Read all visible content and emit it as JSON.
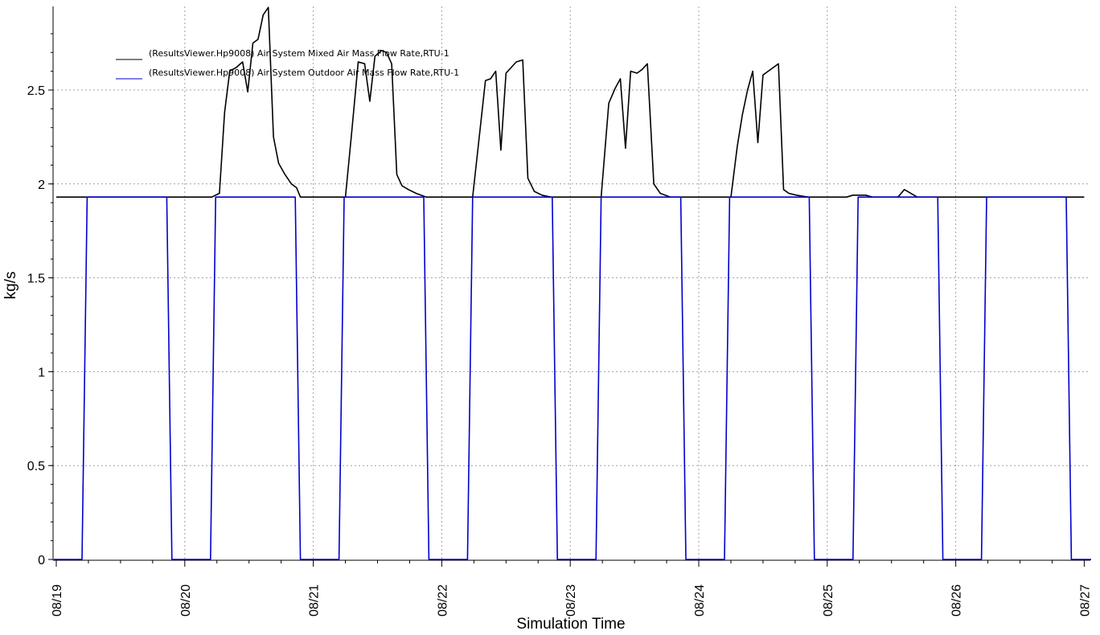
{
  "chart_data": {
    "type": "line",
    "xlabel": "Simulation Time",
    "ylabel": "kg/s",
    "xlim": [
      0,
      8
    ],
    "ylim": [
      0,
      2.92
    ],
    "x_ticks": [
      {
        "x": 0,
        "label": "08/19"
      },
      {
        "x": 1,
        "label": "08/20"
      },
      {
        "x": 2,
        "label": "08/21"
      },
      {
        "x": 3,
        "label": "08/22"
      },
      {
        "x": 4,
        "label": "08/23"
      },
      {
        "x": 5,
        "label": "08/24"
      },
      {
        "x": 6,
        "label": "08/25"
      },
      {
        "x": 7,
        "label": "08/26"
      },
      {
        "x": 8,
        "label": "08/27"
      }
    ],
    "y_ticks": [
      {
        "y": 0,
        "label": "0"
      },
      {
        "y": 0.5,
        "label": "0.5"
      },
      {
        "y": 1,
        "label": "1"
      },
      {
        "y": 1.5,
        "label": "1.5"
      },
      {
        "y": 2,
        "label": "2"
      },
      {
        "y": 2.5,
        "label": "2.5"
      }
    ],
    "grid": true,
    "legend_position": "top-left",
    "series": [
      {
        "name": "(ResultsViewer.Hp9008) Air System Mixed Air Mass Flow Rate,RTU-1",
        "color": "#000000",
        "points": [
          [
            0.0,
            1.93
          ],
          [
            1.21,
            1.93
          ],
          [
            1.27,
            1.95
          ],
          [
            1.31,
            2.38
          ],
          [
            1.35,
            2.6
          ],
          [
            1.4,
            2.62
          ],
          [
            1.45,
            2.65
          ],
          [
            1.49,
            2.49
          ],
          [
            1.53,
            2.75
          ],
          [
            1.57,
            2.77
          ],
          [
            1.61,
            2.9
          ],
          [
            1.65,
            2.94
          ],
          [
            1.69,
            2.25
          ],
          [
            1.73,
            2.11
          ],
          [
            1.78,
            2.05
          ],
          [
            1.83,
            2.0
          ],
          [
            1.87,
            1.98
          ],
          [
            1.9,
            1.93
          ],
          [
            2.25,
            1.93
          ],
          [
            2.3,
            2.28
          ],
          [
            2.35,
            2.65
          ],
          [
            2.4,
            2.64
          ],
          [
            2.44,
            2.44
          ],
          [
            2.48,
            2.68
          ],
          [
            2.53,
            2.71
          ],
          [
            2.57,
            2.7
          ],
          [
            2.61,
            2.64
          ],
          [
            2.65,
            2.05
          ],
          [
            2.69,
            1.99
          ],
          [
            2.74,
            1.97
          ],
          [
            2.8,
            1.95
          ],
          [
            2.88,
            1.93
          ],
          [
            3.24,
            1.93
          ],
          [
            3.3,
            2.3
          ],
          [
            3.34,
            2.55
          ],
          [
            3.38,
            2.56
          ],
          [
            3.42,
            2.6
          ],
          [
            3.46,
            2.18
          ],
          [
            3.5,
            2.59
          ],
          [
            3.54,
            2.62
          ],
          [
            3.58,
            2.65
          ],
          [
            3.63,
            2.66
          ],
          [
            3.67,
            2.03
          ],
          [
            3.72,
            1.96
          ],
          [
            3.78,
            1.94
          ],
          [
            3.85,
            1.93
          ],
          [
            4.24,
            1.93
          ],
          [
            4.3,
            2.43
          ],
          [
            4.35,
            2.51
          ],
          [
            4.39,
            2.56
          ],
          [
            4.43,
            2.19
          ],
          [
            4.47,
            2.6
          ],
          [
            4.52,
            2.59
          ],
          [
            4.56,
            2.61
          ],
          [
            4.6,
            2.64
          ],
          [
            4.65,
            2.0
          ],
          [
            4.7,
            1.95
          ],
          [
            4.78,
            1.93
          ],
          [
            5.25,
            1.93
          ],
          [
            5.3,
            2.2
          ],
          [
            5.34,
            2.37
          ],
          [
            5.38,
            2.5
          ],
          [
            5.42,
            2.6
          ],
          [
            5.46,
            2.22
          ],
          [
            5.5,
            2.58
          ],
          [
            5.54,
            2.6
          ],
          [
            5.58,
            2.62
          ],
          [
            5.62,
            2.64
          ],
          [
            5.66,
            1.97
          ],
          [
            5.7,
            1.95
          ],
          [
            5.76,
            1.94
          ],
          [
            5.85,
            1.93
          ],
          [
            6.15,
            1.93
          ],
          [
            6.2,
            1.94
          ],
          [
            6.3,
            1.94
          ],
          [
            6.35,
            1.93
          ],
          [
            6.55,
            1.93
          ],
          [
            6.6,
            1.97
          ],
          [
            6.7,
            1.93
          ],
          [
            8.0,
            1.93
          ]
        ]
      },
      {
        "name": "(ResultsViewer.Hp9008) Air System Outdoor Air Mass Flow Rate,RTU-1",
        "color": "#0000cc",
        "points": [
          [
            -0.02,
            0
          ],
          [
            0.2,
            0
          ],
          [
            0.24,
            1.93
          ],
          [
            0.86,
            1.93
          ],
          [
            0.9,
            0
          ],
          [
            1.2,
            0
          ],
          [
            1.24,
            1.93
          ],
          [
            1.86,
            1.93
          ],
          [
            1.9,
            0
          ],
          [
            2.2,
            0
          ],
          [
            2.24,
            1.93
          ],
          [
            2.86,
            1.93
          ],
          [
            2.9,
            0
          ],
          [
            3.2,
            0
          ],
          [
            3.24,
            1.93
          ],
          [
            3.86,
            1.93
          ],
          [
            3.9,
            0
          ],
          [
            4.2,
            0
          ],
          [
            4.24,
            1.93
          ],
          [
            4.86,
            1.93
          ],
          [
            4.9,
            0
          ],
          [
            5.2,
            0
          ],
          [
            5.24,
            1.93
          ],
          [
            5.86,
            1.93
          ],
          [
            5.9,
            0
          ],
          [
            6.2,
            0
          ],
          [
            6.24,
            1.93
          ],
          [
            6.86,
            1.93
          ],
          [
            6.9,
            0
          ],
          [
            7.2,
            0
          ],
          [
            7.24,
            1.93
          ],
          [
            7.86,
            1.93
          ],
          [
            7.9,
            0
          ],
          [
            8.06,
            0
          ]
        ]
      }
    ]
  }
}
